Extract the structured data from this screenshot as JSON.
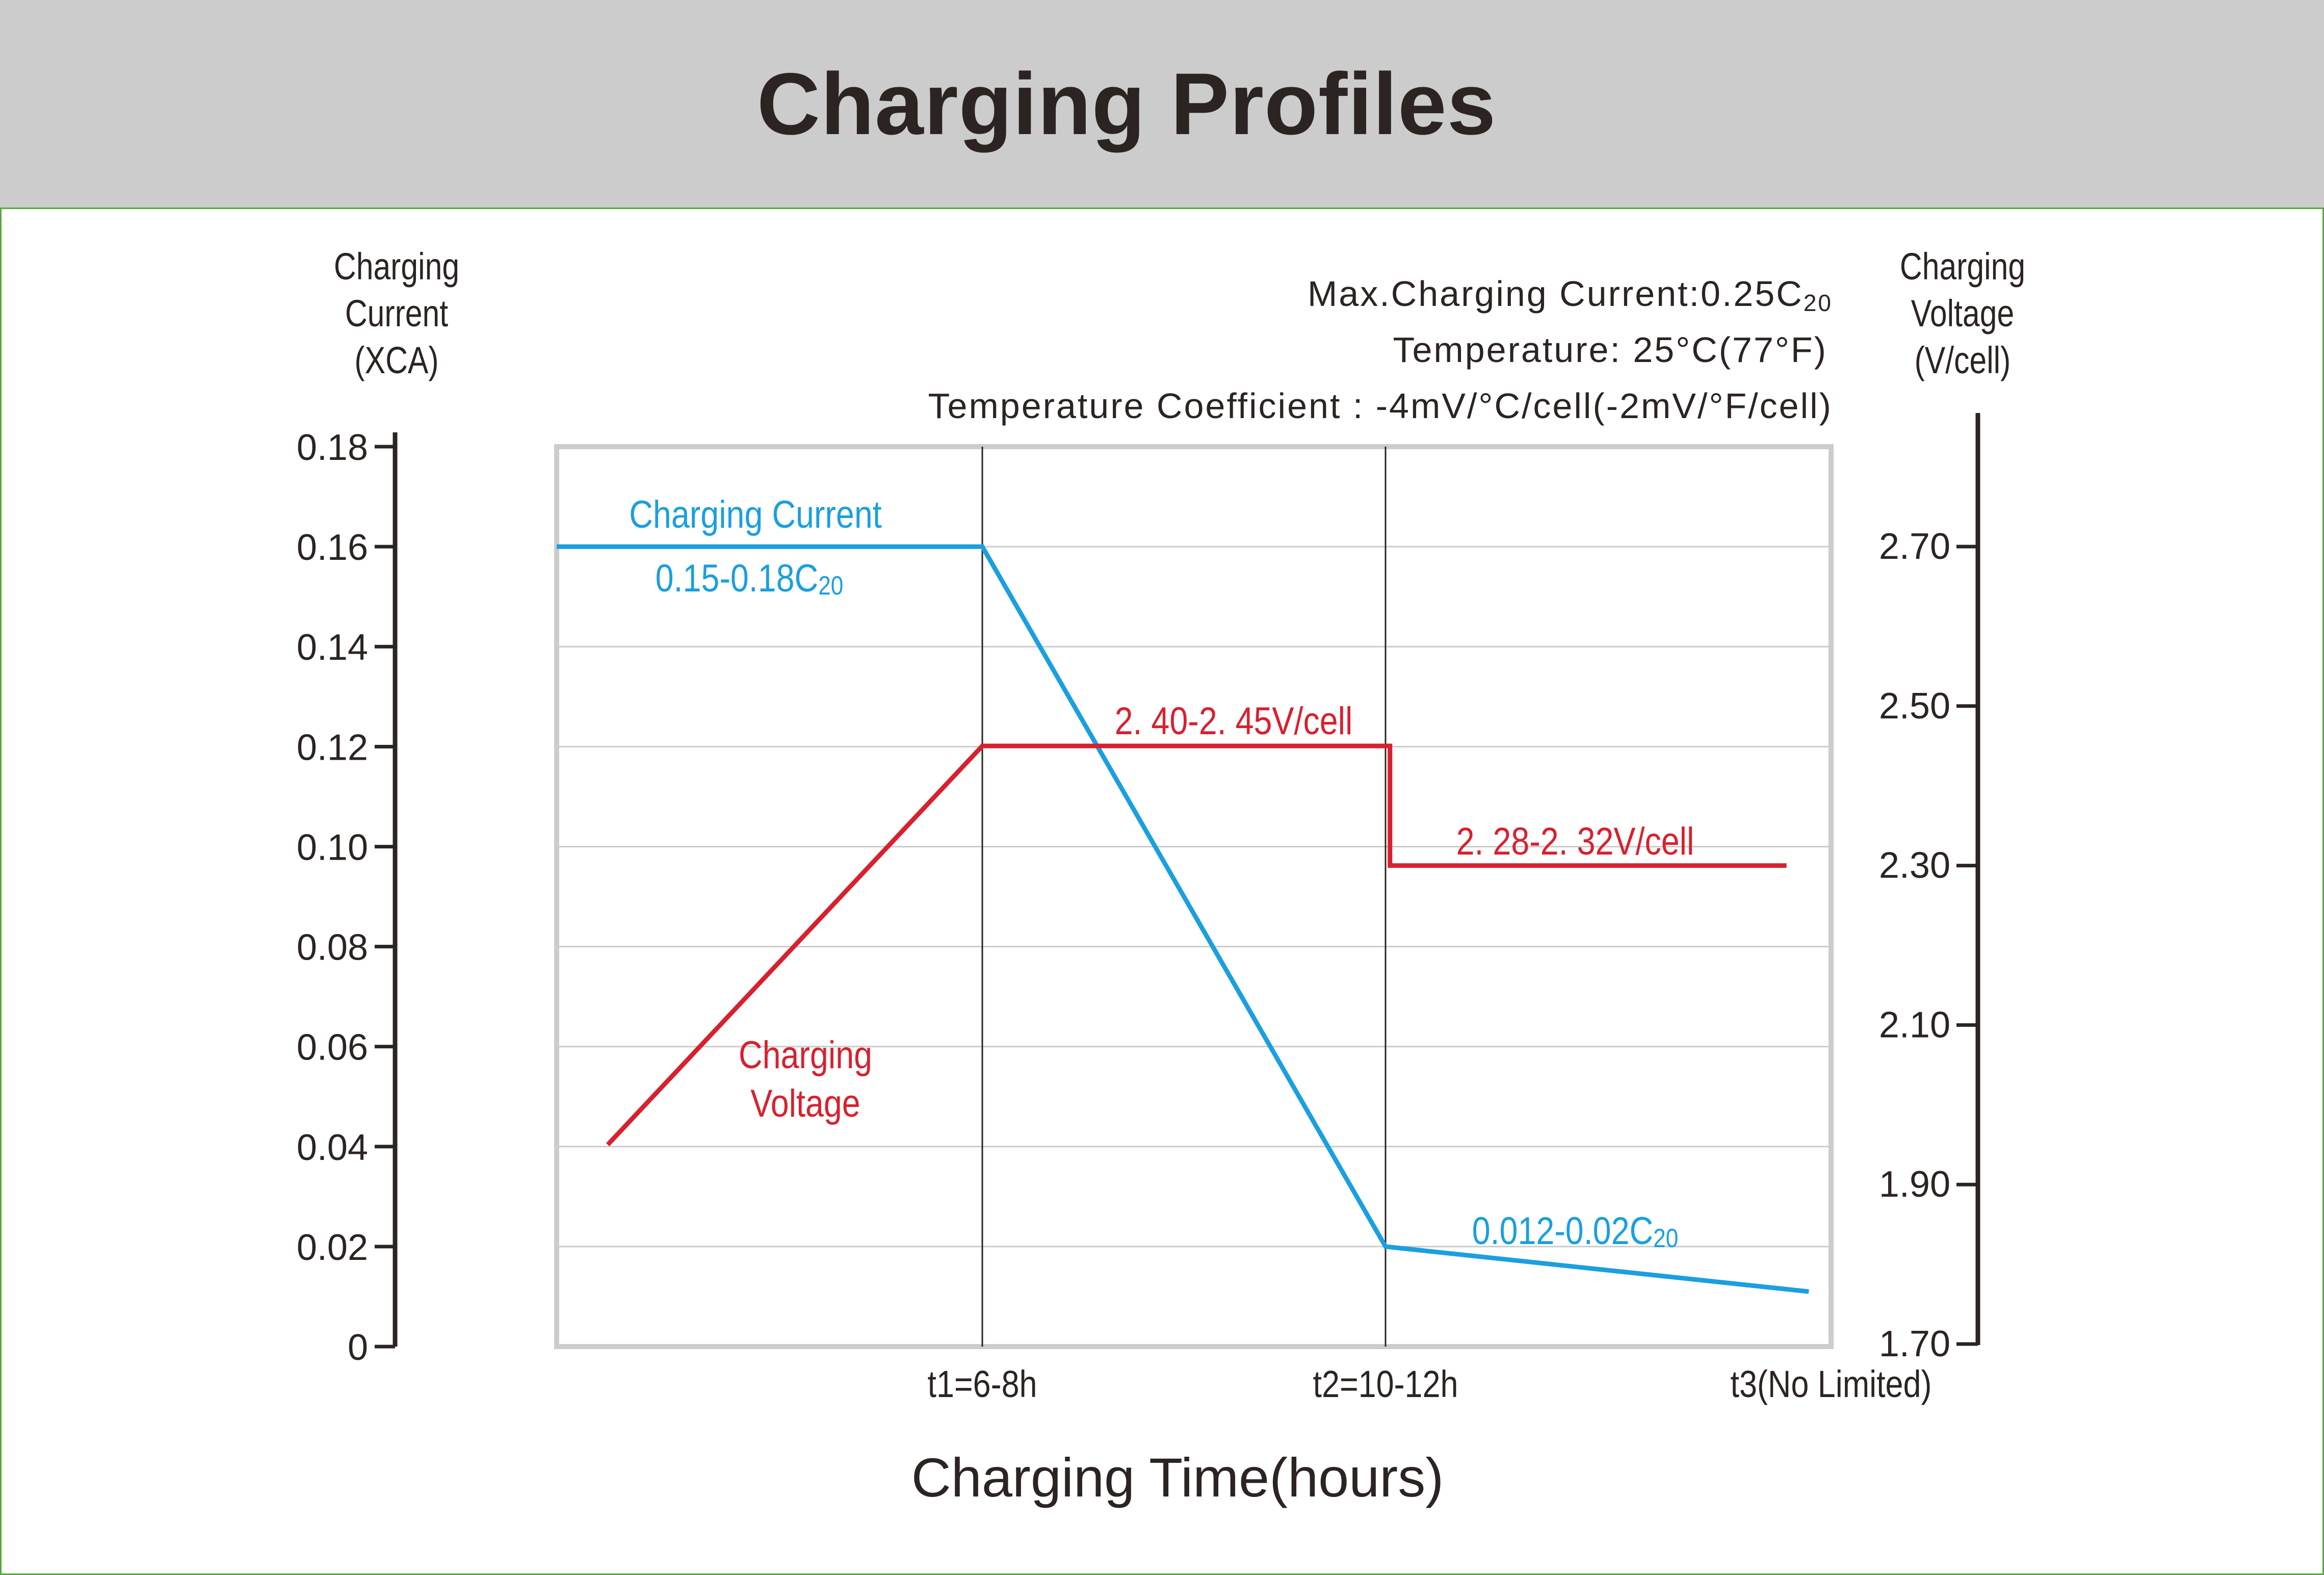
{
  "title": "Charging Profiles",
  "chart_data": {
    "type": "line",
    "title": "Charging Profiles",
    "xlabel": "Charging Time(hours)",
    "ylabel_left": [
      "Charging",
      "Current",
      "(XCA)"
    ],
    "ylabel_right": [
      "Charging",
      "Voltage",
      "(V/cell)"
    ],
    "x_ticks": [
      {
        "x": 1,
        "label": "t1=6-8h"
      },
      {
        "x": 2,
        "label": "t2=10-12h"
      },
      {
        "x": 3,
        "label": "t3(No Limited)"
      }
    ],
    "xlim": [
      0,
      3
    ],
    "ylim_left": [
      0,
      0.18
    ],
    "ylim_right": [
      1.7,
      2.82
    ],
    "left_ticks": [
      "0",
      "0.02",
      "0.04",
      "0.06",
      "0.08",
      "0.10",
      "0.12",
      "0.14",
      "0.16",
      "0.18"
    ],
    "right_ticks": [
      "1.70",
      "1.90",
      "2.10",
      "2.30",
      "2.50",
      "2.70"
    ],
    "grid": true,
    "conditions": [
      {
        "text": "Max.Charging Current:0.25C",
        "sub": "20"
      },
      {
        "text": "Temperature: 25°C(77°F)"
      },
      {
        "text": "Temperature  Coefficient : -4mV/°C/cell(-2mV/°F/cell)"
      }
    ],
    "series": [
      {
        "name": "Charging Current",
        "axis": "left",
        "color": "#1a9fe0",
        "points": [
          [
            0,
            0.16
          ],
          [
            1,
            0.16
          ],
          [
            2,
            0.02
          ],
          [
            2.95,
            0.011
          ]
        ]
      },
      {
        "name": "Charging Voltage",
        "axis": "right",
        "color": "#d8202e",
        "points": [
          [
            0.12,
            1.95
          ],
          [
            1,
            2.45
          ],
          [
            2.01,
            2.45
          ],
          [
            2.01,
            2.3
          ],
          [
            2.9,
            2.3
          ]
        ]
      }
    ],
    "annotations": [
      {
        "text": "Charging Current",
        "color": "#1a9fe0"
      },
      {
        "text": "0.15-0.18C",
        "sub": "20",
        "color": "#1a9fe0"
      },
      {
        "text": "2. 40-2. 45V/cell",
        "color": "#d8202e"
      },
      {
        "text": "2. 28-2. 32V/cell",
        "color": "#d8202e"
      },
      {
        "text": "Charging Voltage",
        "color": "#d8202e"
      },
      {
        "text": "0.012-0.02C",
        "sub": "20",
        "color": "#1a9fe0"
      }
    ]
  }
}
